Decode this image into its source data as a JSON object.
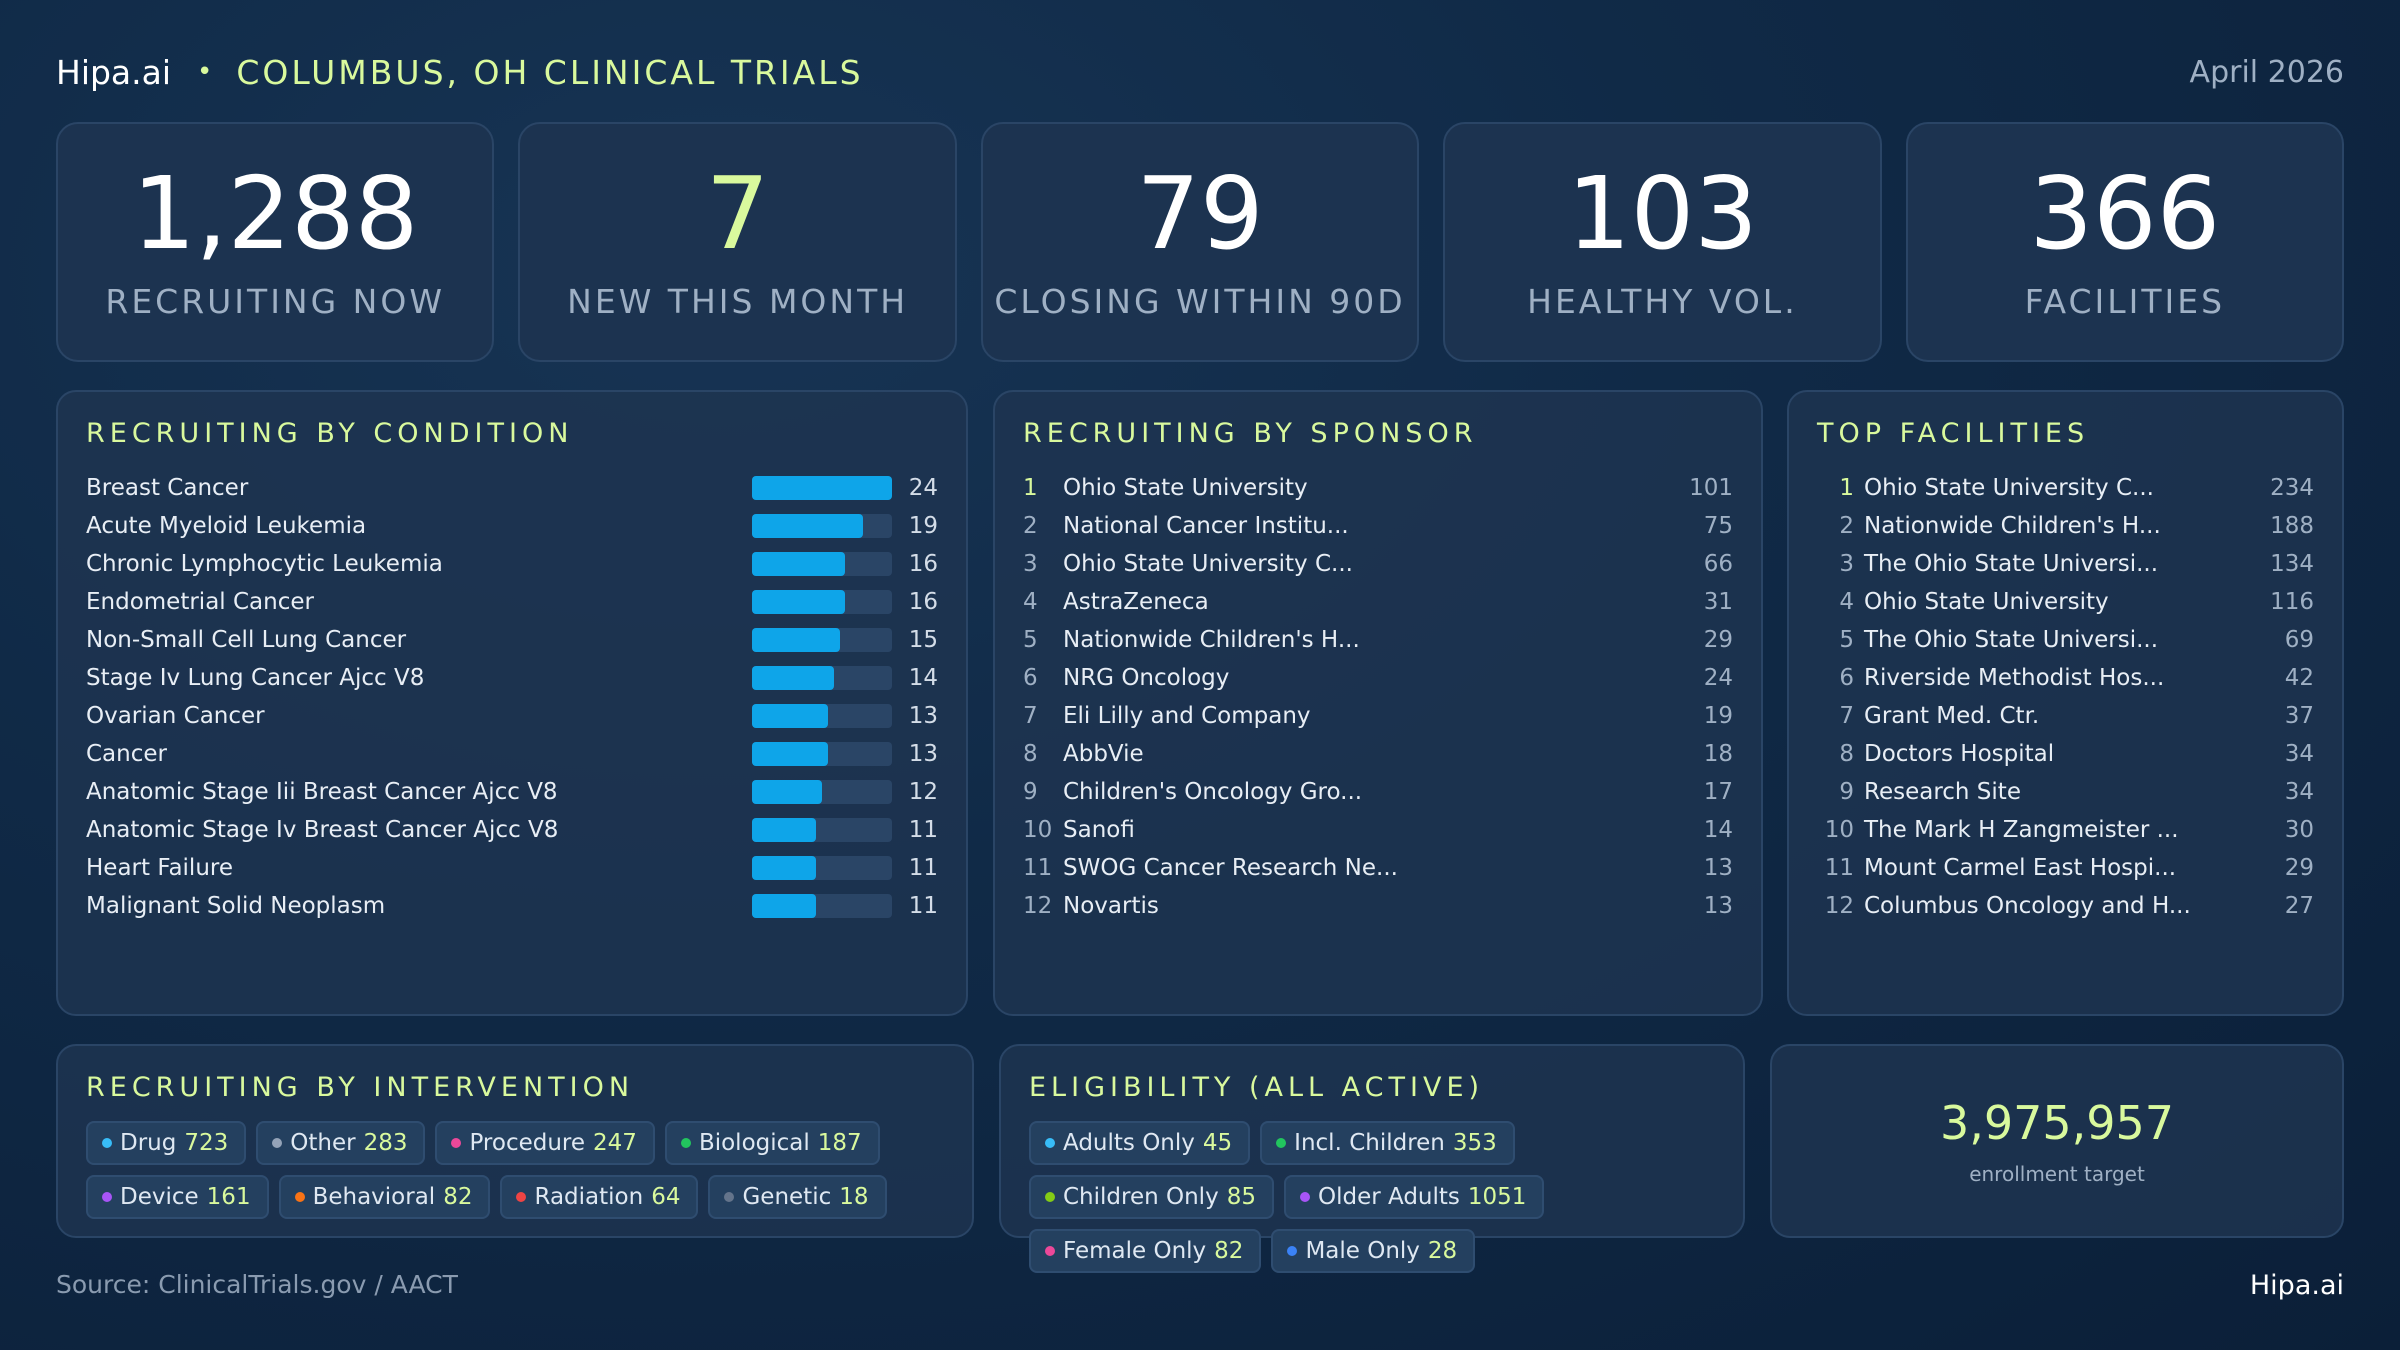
{
  "header": {
    "brand": "Hipa.ai",
    "separator": "•",
    "title": "COLUMBUS, OH CLINICAL TRIALS",
    "date": "April 2026"
  },
  "kpis": [
    {
      "value": "1,288",
      "label": "RECRUITING NOW"
    },
    {
      "value": "7",
      "label": "NEW THIS MONTH"
    },
    {
      "value": "79",
      "label": "CLOSING WITHIN 90D"
    },
    {
      "value": "103",
      "label": "HEALTHY VOL."
    },
    {
      "value": "366",
      "label": "FACILITIES"
    }
  ],
  "condition": {
    "title": "RECRUITING BY CONDITION",
    "items": [
      {
        "label": "Breast Cancer",
        "count": 24
      },
      {
        "label": "Acute Myeloid Leukemia",
        "count": 19
      },
      {
        "label": "Chronic Lymphocytic Leukemia",
        "count": 16
      },
      {
        "label": "Endometrial Cancer",
        "count": 16
      },
      {
        "label": "Non-Small Cell Lung Cancer",
        "count": 15
      },
      {
        "label": "Stage Iv Lung Cancer Ajcc V8",
        "count": 14
      },
      {
        "label": "Ovarian Cancer",
        "count": 13
      },
      {
        "label": "Cancer",
        "count": 13
      },
      {
        "label": "Anatomic Stage Iii Breast Cancer Ajcc V8",
        "count": 12
      },
      {
        "label": "Anatomic Stage Iv Breast Cancer Ajcc V8",
        "count": 11
      },
      {
        "label": "Heart Failure",
        "count": 11
      },
      {
        "label": "Malignant Solid Neoplasm",
        "count": 11
      }
    ]
  },
  "sponsor": {
    "title": "RECRUITING BY SPONSOR",
    "items": [
      {
        "rank": "1",
        "name": "Ohio State University",
        "count": "101"
      },
      {
        "rank": "2",
        "name": "National Cancer Institu...",
        "count": "75"
      },
      {
        "rank": "3",
        "name": "Ohio State University C...",
        "count": "66"
      },
      {
        "rank": "4",
        "name": "AstraZeneca",
        "count": "31"
      },
      {
        "rank": "5",
        "name": "Nationwide Children's H...",
        "count": "29"
      },
      {
        "rank": "6",
        "name": "NRG Oncology",
        "count": "24"
      },
      {
        "rank": "7",
        "name": "Eli Lilly and Company",
        "count": "19"
      },
      {
        "rank": "8",
        "name": "AbbVie",
        "count": "18"
      },
      {
        "rank": "9",
        "name": "Children's Oncology Gro...",
        "count": "17"
      },
      {
        "rank": "10",
        "name": "Sanofi",
        "count": "14"
      },
      {
        "rank": "11",
        "name": "SWOG Cancer Research Ne...",
        "count": "13"
      },
      {
        "rank": "12",
        "name": "Novartis",
        "count": "13"
      }
    ]
  },
  "facilities": {
    "title": "TOP FACILITIES",
    "items": [
      {
        "rank": "1",
        "name": "Ohio State University C...",
        "count": "234"
      },
      {
        "rank": "2",
        "name": "Nationwide Children's H...",
        "count": "188"
      },
      {
        "rank": "3",
        "name": "The Ohio State Universi...",
        "count": "134"
      },
      {
        "rank": "4",
        "name": "Ohio State University",
        "count": "116"
      },
      {
        "rank": "5",
        "name": "The Ohio State Universi...",
        "count": "69"
      },
      {
        "rank": "6",
        "name": "Riverside Methodist Hos...",
        "count": "42"
      },
      {
        "rank": "7",
        "name": "Grant Med. Ctr.",
        "count": "37"
      },
      {
        "rank": "8",
        "name": "Doctors Hospital",
        "count": "34"
      },
      {
        "rank": "9",
        "name": "Research Site",
        "count": "34"
      },
      {
        "rank": "10",
        "name": "The Mark H Zangmeister ...",
        "count": "30"
      },
      {
        "rank": "11",
        "name": "Mount Carmel East Hospi...",
        "count": "29"
      },
      {
        "rank": "12",
        "name": "Columbus Oncology and H...",
        "count": "27"
      }
    ]
  },
  "intervention": {
    "title": "RECRUITING BY INTERVENTION",
    "items": [
      {
        "label": "Drug",
        "value": "723",
        "color": "#38bdf8"
      },
      {
        "label": "Other",
        "value": "283",
        "color": "#94a3b8"
      },
      {
        "label": "Procedure",
        "value": "247",
        "color": "#ec4899"
      },
      {
        "label": "Biological",
        "value": "187",
        "color": "#22c55e"
      },
      {
        "label": "Device",
        "value": "161",
        "color": "#a855f7"
      },
      {
        "label": "Behavioral",
        "value": "82",
        "color": "#f97316"
      },
      {
        "label": "Radiation",
        "value": "64",
        "color": "#ef4444"
      },
      {
        "label": "Genetic",
        "value": "18",
        "color": "#64748b"
      }
    ]
  },
  "eligibility": {
    "title": "ELIGIBILITY (ALL ACTIVE)",
    "items": [
      {
        "label": "Adults Only",
        "value": "45",
        "color": "#38bdf8"
      },
      {
        "label": "Incl. Children",
        "value": "353",
        "color": "#22c55e"
      },
      {
        "label": "Children Only",
        "value": "85",
        "color": "#84cc16"
      },
      {
        "label": "Older Adults",
        "value": "1051",
        "color": "#a855f7"
      },
      {
        "label": "Female Only",
        "value": "82",
        "color": "#ec4899"
      },
      {
        "label": "Male Only",
        "value": "28",
        "color": "#3b82f6"
      }
    ]
  },
  "enrollment": {
    "value": "3,975,957",
    "label": "enrollment target"
  },
  "footer": {
    "source": "Source: ClinicalTrials.gov / AACT",
    "brand": "Hipa.ai"
  }
}
